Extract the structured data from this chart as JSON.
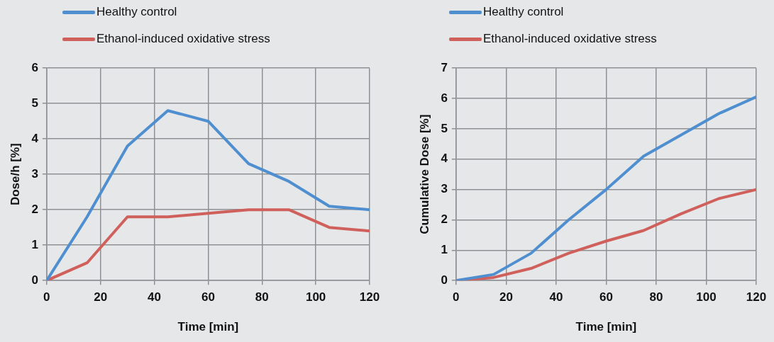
{
  "chart_data": [
    {
      "type": "line",
      "x": [
        0,
        15,
        30,
        45,
        60,
        75,
        90,
        105,
        120
      ],
      "xlabel": "Time [min]",
      "ylabel": "Dose/h [%]",
      "xlim": [
        0,
        120
      ],
      "xticks": [
        0,
        20,
        40,
        60,
        80,
        100,
        120
      ],
      "ylim": [
        0,
        6
      ],
      "yticks": [
        0,
        1,
        2,
        3,
        4,
        5,
        6
      ],
      "grid": true,
      "legend": "top left",
      "marker": "none",
      "series": [
        {
          "name": "Healthy control",
          "color": "#4f8fd0",
          "values": [
            0,
            1.8,
            3.8,
            4.8,
            4.5,
            3.3,
            2.8,
            2.1,
            2.0
          ]
        },
        {
          "name": "Ethanol-induced oxidative stress",
          "color": "#d0605c",
          "values": [
            0,
            0.5,
            1.8,
            1.8,
            1.9,
            2.0,
            2.0,
            1.5,
            1.4
          ]
        }
      ]
    },
    {
      "type": "line",
      "x": [
        0,
        15,
        30,
        45,
        60,
        75,
        90,
        105,
        120
      ],
      "xlabel": "Time [min]",
      "ylabel": "Cumulative Dose [%]",
      "xlim": [
        0,
        120
      ],
      "xticks": [
        0,
        20,
        40,
        60,
        80,
        100,
        120
      ],
      "ylim": [
        0,
        7
      ],
      "yticks": [
        0,
        1,
        2,
        3,
        4,
        5,
        6,
        7
      ],
      "grid": true,
      "legend": "top left",
      "marker": "none",
      "series": [
        {
          "name": "Healthy control",
          "color": "#4f8fd0",
          "values": [
            0,
            0.2,
            0.9,
            2.0,
            3.0,
            4.1,
            4.8,
            5.5,
            6.05
          ]
        },
        {
          "name": "Ethanol-induced oxidative stress",
          "color": "#d0605c",
          "values": [
            0,
            0.1,
            0.4,
            0.9,
            1.3,
            1.65,
            2.2,
            2.7,
            3.0
          ]
        }
      ]
    }
  ]
}
